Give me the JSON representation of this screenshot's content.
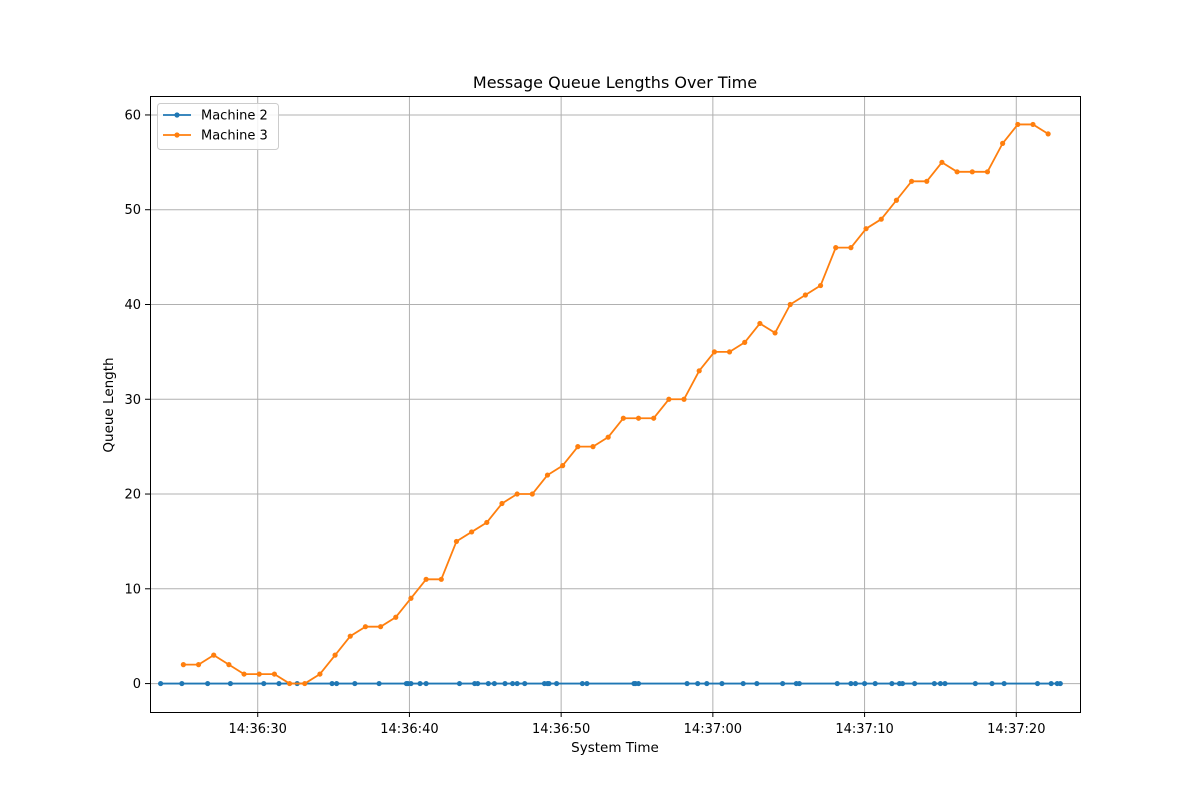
{
  "chart_data": {
    "type": "line",
    "title": "Message Queue Lengths Over Time",
    "xlabel": "System Time",
    "ylabel": "Queue Length",
    "x_range": [
      "14:36:22.9",
      "14:37:24.2"
    ],
    "ylim": [
      -3,
      62
    ],
    "x_ticks": [
      "14:36:30",
      "14:36:40",
      "14:36:50",
      "14:37:00",
      "14:37:10",
      "14:37:20"
    ],
    "y_ticks": [
      0,
      10,
      20,
      30,
      40,
      50,
      60
    ],
    "grid": true,
    "legend_position": "top-left",
    "series": [
      {
        "name": "Machine 2",
        "color": "#1f77b4",
        "x": [
          "14:36:23.6",
          "14:36:25.0",
          "14:36:26.7",
          "14:36:28.2",
          "14:36:30.4",
          "14:36:31.4",
          "14:36:32.6",
          "14:36:34.9",
          "14:36:35.2",
          "14:36:36.4",
          "14:36:38.0",
          "14:36:39.8",
          "14:36:39.9",
          "14:36:40.1",
          "14:36:40.7",
          "14:36:41.1",
          "14:36:43.3",
          "14:36:44.3",
          "14:36:44.5",
          "14:36:45.2",
          "14:36:45.6",
          "14:36:46.3",
          "14:36:46.8",
          "14:36:47.1",
          "14:36:47.6",
          "14:36:48.9",
          "14:36:49.1",
          "14:36:49.2",
          "14:36:49.7",
          "14:36:51.4",
          "14:36:51.7",
          "14:36:54.8",
          "14:36:54.9",
          "14:36:55.1",
          "14:36:58.3",
          "14:36:59.0",
          "14:36:59.6",
          "14:37:00.6",
          "14:37:02.0",
          "14:37:02.9",
          "14:37:04.6",
          "14:37:05.5",
          "14:37:05.7",
          "14:37:08.2",
          "14:37:09.1",
          "14:37:09.4",
          "14:37:10.0",
          "14:37:10.7",
          "14:37:11.8",
          "14:37:12.3",
          "14:37:12.5",
          "14:37:13.3",
          "14:37:14.6",
          "14:37:15.0",
          "14:37:15.3",
          "14:37:17.3",
          "14:37:18.4",
          "14:37:19.2",
          "14:37:21.4",
          "14:37:22.3",
          "14:37:22.7",
          "14:37:22.9"
        ],
        "y": [
          0,
          0,
          0,
          0,
          0,
          0,
          0,
          0,
          0,
          0,
          0,
          0,
          0,
          0,
          0,
          0,
          0,
          0,
          0,
          0,
          0,
          0,
          0,
          0,
          0,
          0,
          0,
          0,
          0,
          0,
          0,
          0,
          0,
          0,
          0,
          0,
          0,
          0,
          0,
          0,
          0,
          0,
          0,
          0,
          0,
          0,
          0,
          0,
          0,
          0,
          0,
          0,
          0,
          0,
          0,
          0,
          0,
          0,
          0,
          0,
          0,
          0
        ]
      },
      {
        "name": "Machine 3",
        "color": "#ff7f0e",
        "x": [
          "14:36:25.1",
          "14:36:26.1",
          "14:36:27.1",
          "14:36:28.1",
          "14:36:29.1",
          "14:36:30.1",
          "14:36:31.1",
          "14:36:32.1",
          "14:36:33.1",
          "14:36:34.1",
          "14:36:35.1",
          "14:36:36.1",
          "14:36:37.1",
          "14:36:38.1",
          "14:36:39.1",
          "14:36:40.1",
          "14:36:41.1",
          "14:36:42.1",
          "14:36:43.1",
          "14:36:44.1",
          "14:36:45.1",
          "14:36:46.1",
          "14:36:47.1",
          "14:36:48.1",
          "14:36:49.1",
          "14:36:50.1",
          "14:36:51.1",
          "14:36:52.1",
          "14:36:53.1",
          "14:36:54.1",
          "14:36:55.1",
          "14:36:56.1",
          "14:36:57.1",
          "14:36:58.1",
          "14:36:59.1",
          "14:37:00.1",
          "14:37:01.1",
          "14:37:02.1",
          "14:37:03.1",
          "14:37:04.1",
          "14:37:05.1",
          "14:37:06.1",
          "14:37:07.1",
          "14:37:08.1",
          "14:37:09.1",
          "14:37:10.1",
          "14:37:11.1",
          "14:37:12.1",
          "14:37:13.1",
          "14:37:14.1",
          "14:37:15.1",
          "14:37:16.1",
          "14:37:17.1",
          "14:37:18.1",
          "14:37:19.1",
          "14:37:20.1",
          "14:37:21.1",
          "14:37:22.1"
        ],
        "y": [
          2,
          2,
          3,
          2,
          1,
          1,
          1,
          0,
          0,
          1,
          3,
          5,
          6,
          6,
          7,
          9,
          11,
          11,
          15,
          16,
          17,
          19,
          20,
          20,
          22,
          23,
          25,
          25,
          26,
          28,
          28,
          28,
          30,
          30,
          33,
          35,
          35,
          36,
          38,
          37,
          40,
          41,
          42,
          46,
          46,
          48,
          49,
          51,
          53,
          53,
          55,
          54,
          54,
          54,
          57,
          59,
          59,
          58
        ]
      }
    ]
  }
}
